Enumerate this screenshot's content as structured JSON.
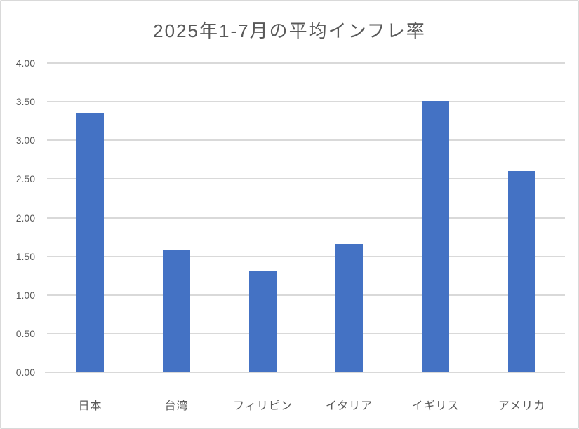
{
  "chart_data": {
    "type": "bar",
    "title": "2025年1-7月の平均インフレ率",
    "categories": [
      "日本",
      "台湾",
      "フィリピン",
      "イタリア",
      "イギリス",
      "アメリカ"
    ],
    "values": [
      3.36,
      1.58,
      1.31,
      1.66,
      3.51,
      2.6
    ],
    "xlabel": "",
    "ylabel": "",
    "ylim": [
      0,
      4
    ],
    "ytick_step": 0.5,
    "ytick_labels": [
      "0.00",
      "0.50",
      "1.00",
      "1.50",
      "2.00",
      "2.50",
      "3.00",
      "3.50",
      "4.00"
    ],
    "grid": true,
    "legend_position": "none",
    "bar_color": "#4472C4",
    "gridline_color": "#D9D9D9",
    "axis_line_color": "#D9D9D9",
    "text_color": "#595959",
    "background_color": "#FFFFFF",
    "border_color": "#D9D9D9"
  }
}
